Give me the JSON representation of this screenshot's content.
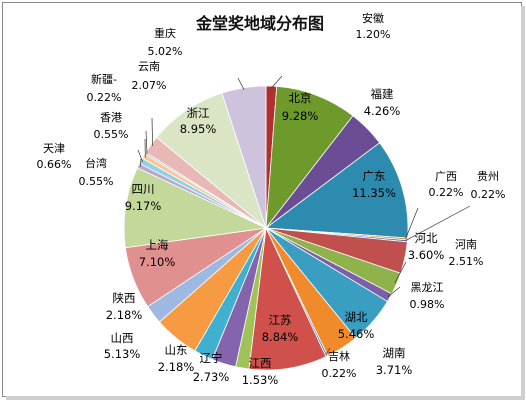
{
  "chart_data": {
    "type": "pie",
    "title": "金堂奖地域分布图",
    "slices": [
      {
        "name": "安徽",
        "value": 1.2,
        "label": "1.20%",
        "color": "#b03030"
      },
      {
        "name": "北京",
        "value": 9.28,
        "label": "9.28%",
        "color": "#6e9a2c"
      },
      {
        "name": "福建",
        "value": 4.26,
        "label": "4.26%",
        "color": "#6a4d94"
      },
      {
        "name": "广东",
        "value": 11.35,
        "label": "11.35%",
        "color": "#2e8bb0"
      },
      {
        "name": "广西",
        "value": 0.22,
        "label": "0.22%",
        "color": "#e08a2a"
      },
      {
        "name": "贵州",
        "value": 0.22,
        "label": "0.22%",
        "color": "#4a74b5"
      },
      {
        "name": "河北",
        "value": 3.6,
        "label": "3.60%",
        "color": "#c0504d"
      },
      {
        "name": "河南",
        "value": 2.51,
        "label": "2.51%",
        "color": "#8fb24a"
      },
      {
        "name": "黑龙江",
        "value": 0.98,
        "label": "0.98%",
        "color": "#7d5ea8"
      },
      {
        "name": "湖北",
        "value": 5.46,
        "label": "5.46%",
        "color": "#3a9ec2"
      },
      {
        "name": "湖南",
        "value": 3.71,
        "label": "3.71%",
        "color": "#f08b2b"
      },
      {
        "name": "吉林",
        "value": 0.22,
        "label": "0.22%",
        "color": "#5b86c4"
      },
      {
        "name": "江苏",
        "value": 8.84,
        "label": "8.84%",
        "color": "#d0504c"
      },
      {
        "name": "江西",
        "value": 1.53,
        "label": "1.53%",
        "color": "#9fc358"
      },
      {
        "name": "辽宁",
        "value": 2.73,
        "label": "2.73%",
        "color": "#8464ad"
      },
      {
        "name": "山东",
        "value": 2.18,
        "label": "2.18%",
        "color": "#3fb0cf"
      },
      {
        "name": "山西",
        "value": 5.13,
        "label": "5.13%",
        "color": "#f79b42"
      },
      {
        "name": "陕西",
        "value": 2.18,
        "label": "2.18%",
        "color": "#9db8e1"
      },
      {
        "name": "上海",
        "value": 7.1,
        "label": "7.10%",
        "color": "#e0908e"
      },
      {
        "name": "四川",
        "value": 9.17,
        "label": "9.17%",
        "color": "#c3d99b"
      },
      {
        "name": "台湾",
        "value": 0.55,
        "label": "0.55%",
        "color": "#b7a9cf"
      },
      {
        "name": "天津",
        "value": 0.66,
        "label": "0.66%",
        "color": "#95d1e4"
      },
      {
        "name": "香港",
        "value": 0.55,
        "label": "0.55%",
        "color": "#fac592"
      },
      {
        "name": "新疆-",
        "value": 0.22,
        "label": "0.22%",
        "color": "#aebfd9"
      },
      {
        "name": "云南",
        "value": 2.07,
        "label": "2.07%",
        "color": "#e8b8b7"
      },
      {
        "name": "浙江",
        "value": 8.95,
        "label": "8.95%",
        "color": "#d9e5c4"
      },
      {
        "name": "重庆",
        "value": 5.02,
        "label": "5.02%",
        "color": "#cdc3dc"
      }
    ]
  }
}
